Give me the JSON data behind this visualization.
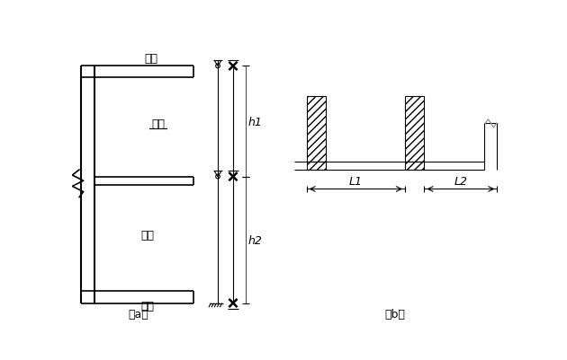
{
  "bg_color": "#ffffff",
  "line_color": "#000000",
  "label_a": "（a）",
  "label_b": "（b）",
  "text_dingban": "顶板",
  "text_cebi": "侧壁",
  "text_louban": "楼板",
  "text_diban": "底板",
  "text_h1": "h1",
  "text_h2": "h2",
  "text_L1": "L1",
  "text_L2": "L2",
  "font_size": 9,
  "font_size_label": 9
}
